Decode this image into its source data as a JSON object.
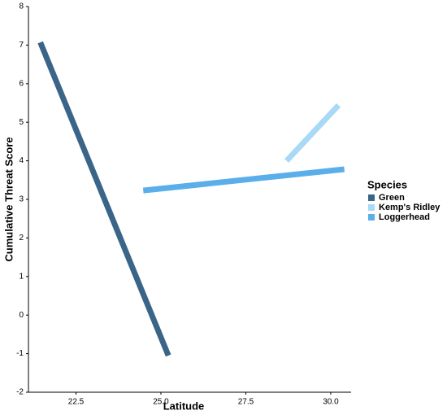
{
  "chart_data": {
    "type": "line",
    "x_label": "Latitude",
    "y_label": "Cumulative Threat Score",
    "legend_title": "Species",
    "legend_position": "right",
    "series": [
      {
        "name": "Green",
        "color": "#3b6588",
        "x": [
          21.45,
          25.22
        ],
        "values": [
          7.07,
          -1.05
        ]
      },
      {
        "name": "Kemp's Ridley",
        "color": "#a8d9f6",
        "x": [
          28.7,
          30.23
        ],
        "values": [
          4.0,
          5.44
        ]
      },
      {
        "name": "Loggerhead",
        "color": "#5aaeea",
        "x": [
          24.48,
          30.4
        ],
        "values": [
          3.23,
          3.78
        ]
      }
    ],
    "xlim": [
      21.1,
      30.6
    ],
    "xticks": [
      22.5,
      {
        "value": 25,
        "label": "25.0"
      },
      27.5,
      {
        "value": 30,
        "label": "30.0"
      }
    ],
    "ylim": [
      -2,
      8
    ],
    "yticks": [
      -2,
      -1,
      0,
      1,
      2,
      3,
      4,
      5,
      6,
      7,
      8
    ],
    "grid": false
  }
}
